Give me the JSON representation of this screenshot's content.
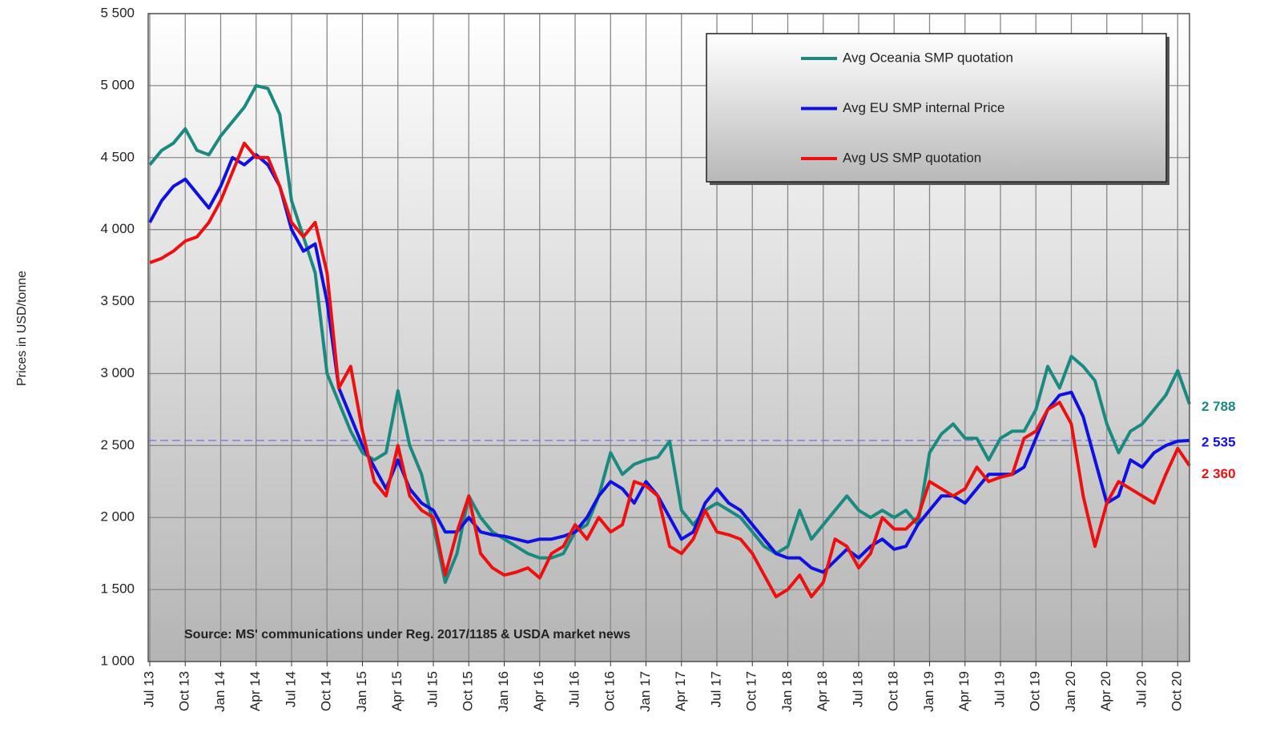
{
  "chart_data": {
    "type": "line",
    "y_axis_label": "Prices in USD/tonne",
    "annotation": "Source: MS' communications under Reg. 2017/1185 & USDA  market news",
    "categories": [
      "Jul 13",
      null,
      null,
      "Oct 13",
      null,
      null,
      "Jan 14",
      null,
      null,
      "Apr 14",
      null,
      null,
      "Jul 14",
      null,
      null,
      "Oct 14",
      null,
      null,
      "Jan 15",
      null,
      null,
      "Apr 15",
      null,
      null,
      "Jul 15",
      null,
      null,
      "Oct 15",
      null,
      null,
      "Jan 16",
      null,
      null,
      "Apr 16",
      null,
      null,
      "Jul 16",
      null,
      null,
      "Oct 16",
      null,
      null,
      "Jan 17",
      null,
      null,
      "Apr 17",
      null,
      null,
      "Jul 17",
      null,
      null,
      "Oct 17",
      null,
      null,
      "Jan 18",
      null,
      null,
      "Apr 18",
      null,
      null,
      "Jul 18",
      null,
      null,
      "Oct 18",
      null,
      null,
      "Jan 19",
      null,
      null,
      "Apr 19",
      null,
      null,
      "Jul 19",
      null,
      null,
      "Oct 19",
      null,
      null,
      "Jan 20",
      null,
      null,
      "Apr 20",
      null,
      null,
      "Jul 20",
      null,
      null,
      "Oct 20",
      null
    ],
    "series": [
      {
        "name": "Avg Oceania SMP quotation",
        "color": "#1a8a80",
        "end_label": "2 788",
        "values": [
          4450,
          4550,
          4600,
          4700,
          4550,
          4520,
          4650,
          4750,
          4850,
          5000,
          4980,
          4800,
          4200,
          3950,
          3700,
          3000,
          2800,
          2600,
          2450,
          2400,
          2450,
          2880,
          2500,
          2300,
          1950,
          1550,
          1750,
          2150,
          2000,
          1900,
          1850,
          1800,
          1750,
          1720,
          1720,
          1750,
          1900,
          1950,
          2150,
          2450,
          2300,
          2370,
          2400,
          2420,
          2530,
          2050,
          1950,
          2050,
          2100,
          2050,
          2000,
          1900,
          1800,
          1750,
          1800,
          2050,
          1850,
          1950,
          2050,
          2150,
          2050,
          2000,
          2050,
          2000,
          2050,
          1950,
          2450,
          2580,
          2650,
          2550,
          2550,
          2400,
          2550,
          2600,
          2600,
          2750,
          3050,
          2900,
          3120,
          3050,
          2950,
          2650,
          2450,
          2600,
          2650,
          2750,
          2850,
          3020,
          2788
        ]
      },
      {
        "name": "Avg EU SMP internal Price",
        "color": "#1010e0",
        "end_label": "2 535",
        "values": [
          4050,
          4200,
          4300,
          4350,
          4250,
          4150,
          4300,
          4500,
          4450,
          4520,
          4450,
          4300,
          4000,
          3850,
          3900,
          3500,
          2900,
          2700,
          2500,
          2350,
          2200,
          2400,
          2200,
          2100,
          2050,
          1900,
          1900,
          2000,
          1900,
          1880,
          1870,
          1850,
          1830,
          1850,
          1850,
          1870,
          1900,
          2000,
          2150,
          2250,
          2200,
          2100,
          2250,
          2150,
          2000,
          1850,
          1900,
          2100,
          2200,
          2100,
          2050,
          1950,
          1850,
          1750,
          1720,
          1720,
          1650,
          1620,
          1700,
          1780,
          1720,
          1800,
          1850,
          1780,
          1800,
          1950,
          2050,
          2150,
          2150,
          2100,
          2200,
          2300,
          2300,
          2300,
          2350,
          2550,
          2750,
          2850,
          2870,
          2700,
          2400,
          2100,
          2150,
          2400,
          2350,
          2450,
          2500,
          2530,
          2535
        ]
      },
      {
        "name": "Avg US SMP quotation",
        "color": "#ee1010",
        "end_label": "2 360",
        "values": [
          3770,
          3800,
          3850,
          3920,
          3950,
          4050,
          4200,
          4400,
          4600,
          4500,
          4500,
          4300,
          4050,
          3950,
          4050,
          3700,
          2900,
          3050,
          2600,
          2250,
          2150,
          2500,
          2150,
          2050,
          2000,
          1600,
          1900,
          2150,
          1750,
          1650,
          1600,
          1620,
          1650,
          1580,
          1750,
          1800,
          1950,
          1850,
          2000,
          1900,
          1950,
          2250,
          2220,
          2150,
          1800,
          1750,
          1850,
          2050,
          1900,
          1880,
          1850,
          1750,
          1600,
          1450,
          1500,
          1600,
          1450,
          1550,
          1850,
          1800,
          1650,
          1750,
          2000,
          1920,
          1920,
          2000,
          2250,
          2200,
          2150,
          2200,
          2350,
          2250,
          2280,
          2300,
          2550,
          2600,
          2750,
          2800,
          2650,
          2150,
          1800,
          2100,
          2250,
          2200,
          2150,
          2100,
          2300,
          2480,
          2360
        ]
      }
    ],
    "reference_line": {
      "value": 2535,
      "color": "#8080e0"
    },
    "ylim": [
      1000,
      5500
    ],
    "yticks": [
      {
        "value": 1000,
        "label": "1 000"
      },
      {
        "value": 1500,
        "label": "1 500"
      },
      {
        "value": 2000,
        "label": "2 000"
      },
      {
        "value": 2500,
        "label": "2 500"
      },
      {
        "value": 3000,
        "label": "3 000"
      },
      {
        "value": 3500,
        "label": "3 500"
      },
      {
        "value": 4000,
        "label": "4 000"
      },
      {
        "value": 4500,
        "label": "4 500"
      },
      {
        "value": 5000,
        "label": "5 000"
      },
      {
        "value": 5500,
        "label": "5 500"
      }
    ],
    "grid": true
  }
}
